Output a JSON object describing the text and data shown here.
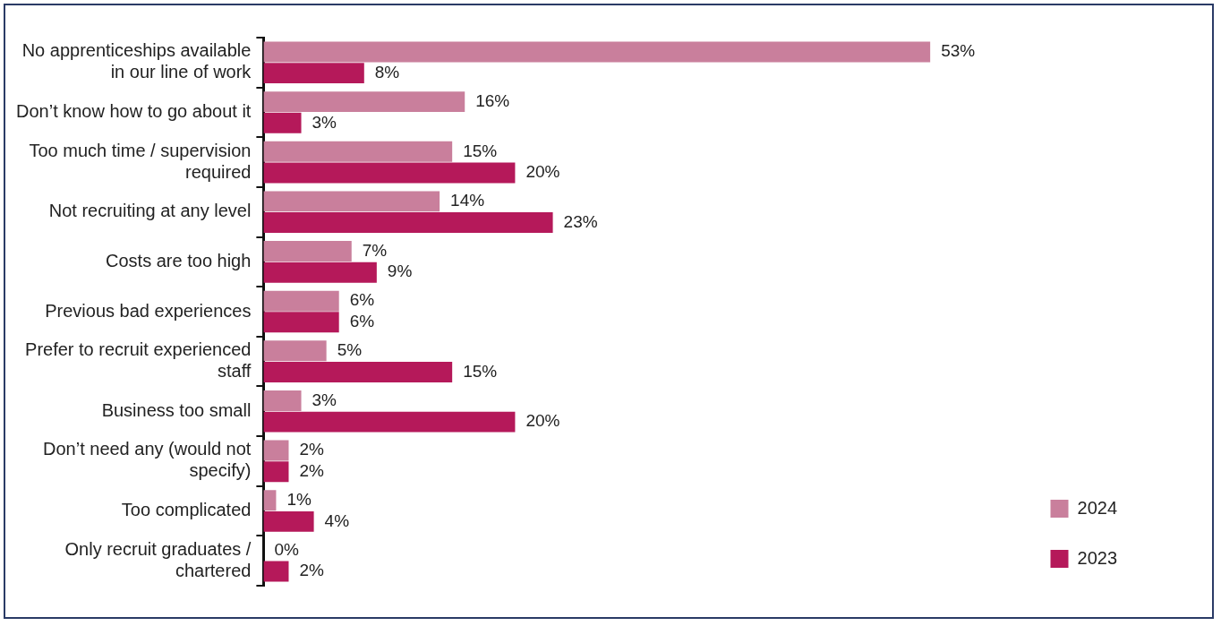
{
  "chart_data": {
    "type": "bar",
    "orientation": "horizontal",
    "legend": "bottom right",
    "categories": [
      "No apprenticeships available in our line of work",
      "Don’t know how to go about it",
      "Too much time / supervision required",
      "Not recruiting at any level",
      "Costs are too high",
      "Previous bad experiences",
      "Prefer to recruit experienced staff",
      "Business too small",
      "Don’t need any (would not specify)",
      "Too complicated",
      "Only recruit graduates / chartered"
    ],
    "series": [
      {
        "name": "2024",
        "color": "#c97f9c",
        "values": [
          53,
          16,
          15,
          14,
          7,
          6,
          5,
          3,
          2,
          1,
          0
        ],
        "value_labels": [
          "53%",
          "16%",
          "15%",
          "14%",
          "7%",
          "6%",
          "5%",
          "3%",
          "2%",
          "1%",
          "0%"
        ]
      },
      {
        "name": "2023",
        "color": "#b5195a",
        "values": [
          8,
          3,
          20,
          23,
          9,
          6,
          15,
          20,
          2,
          4,
          2
        ],
        "value_labels": [
          "8%",
          "3%",
          "20%",
          "23%",
          "9%",
          "6%",
          "15%",
          "20%",
          "2%",
          "4%",
          "2%"
        ]
      }
    ]
  }
}
